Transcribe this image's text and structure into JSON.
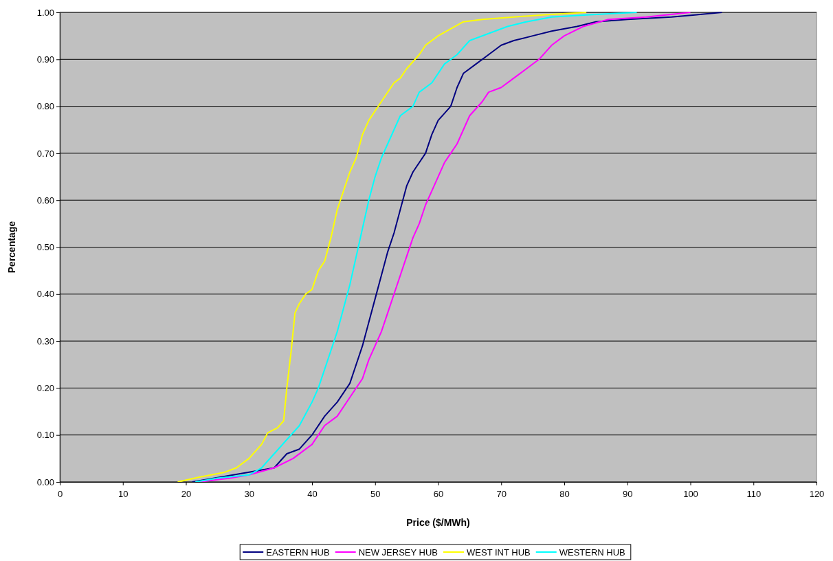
{
  "chart_data": {
    "type": "line",
    "xlabel": "Price ($/MWh)",
    "ylabel": "Percentage",
    "xlim": [
      0,
      120
    ],
    "xticks": [
      0,
      10,
      20,
      30,
      40,
      50,
      60,
      70,
      80,
      90,
      100,
      110,
      120
    ],
    "ylim": [
      0,
      1
    ],
    "yticks": [
      {
        "value": 0,
        "label": "0.00"
      },
      {
        "value": 0.1,
        "label": "0.10"
      },
      {
        "value": 0.2,
        "label": "0.20"
      },
      {
        "value": 0.3,
        "label": "0.30"
      },
      {
        "value": 0.4,
        "label": "0.40"
      },
      {
        "value": 0.5,
        "label": "0.50"
      },
      {
        "value": 0.6,
        "label": "0.60"
      },
      {
        "value": 0.7,
        "label": "0.70"
      },
      {
        "value": 0.8,
        "label": "0.80"
      },
      {
        "value": 0.9,
        "label": "0.90"
      },
      {
        "value": 1,
        "label": "1.00"
      }
    ],
    "grid": "y",
    "legend": "bottom",
    "marker": "none",
    "line_style": "solid",
    "series": [
      {
        "name": "EASTERN HUB",
        "color": "#000080",
        "x": [
          21,
          34,
          36,
          38,
          40,
          42,
          44,
          46,
          47,
          48,
          49,
          50,
          51,
          52,
          53,
          54,
          55,
          56,
          58,
          59,
          60,
          62,
          63,
          64,
          66,
          68,
          70,
          72,
          75,
          78,
          82,
          85,
          90,
          97,
          101,
          105
        ],
        "values": [
          0,
          0.03,
          0.06,
          0.07,
          0.1,
          0.14,
          0.17,
          0.21,
          0.25,
          0.29,
          0.34,
          0.39,
          0.44,
          0.49,
          0.53,
          0.58,
          0.63,
          0.66,
          0.7,
          0.74,
          0.77,
          0.8,
          0.84,
          0.87,
          0.89,
          0.91,
          0.93,
          0.94,
          0.95,
          0.96,
          0.97,
          0.98,
          0.985,
          0.99,
          0.995,
          1
        ]
      },
      {
        "name": "NEW JERSEY HUB",
        "color": "#ff00ff",
        "x": [
          22,
          27,
          30,
          34,
          37,
          40,
          42,
          44,
          46,
          48,
          49,
          50,
          51,
          52,
          53,
          54,
          55,
          56,
          57,
          58,
          59,
          60,
          61,
          62,
          63,
          64,
          65,
          67,
          68,
          70,
          72,
          74,
          76,
          78,
          80,
          83,
          87,
          93,
          100
        ],
        "values": [
          0,
          0.008,
          0.015,
          0.03,
          0.05,
          0.08,
          0.12,
          0.14,
          0.18,
          0.22,
          0.26,
          0.29,
          0.32,
          0.36,
          0.4,
          0.44,
          0.48,
          0.52,
          0.55,
          0.59,
          0.62,
          0.65,
          0.68,
          0.7,
          0.72,
          0.75,
          0.78,
          0.81,
          0.83,
          0.84,
          0.86,
          0.88,
          0.9,
          0.93,
          0.95,
          0.97,
          0.985,
          0.99,
          1
        ]
      },
      {
        "name": "WEST INT HUB",
        "color": "#ffff00",
        "x": [
          18.7,
          22,
          26,
          28,
          30,
          32,
          33,
          34.5,
          35.5,
          36,
          36.7,
          37.3,
          38,
          39,
          40,
          41,
          42,
          43,
          44,
          45,
          46,
          47,
          48,
          49,
          50,
          51,
          53,
          54,
          55,
          57,
          58,
          60,
          62,
          64,
          67,
          72,
          77,
          83.5
        ],
        "values": [
          0,
          0.01,
          0.02,
          0.03,
          0.05,
          0.08,
          0.105,
          0.115,
          0.13,
          0.2,
          0.28,
          0.36,
          0.38,
          0.4,
          0.41,
          0.45,
          0.47,
          0.52,
          0.58,
          0.62,
          0.66,
          0.69,
          0.74,
          0.77,
          0.79,
          0.81,
          0.85,
          0.86,
          0.88,
          0.91,
          0.93,
          0.95,
          0.965,
          0.98,
          0.985,
          0.99,
          0.995,
          1
        ]
      },
      {
        "name": "WESTERN HUB",
        "color": "#00ffff",
        "x": [
          21.5,
          25,
          30,
          32,
          34,
          36,
          38,
          40,
          41,
          42,
          43,
          44,
          45,
          46,
          47,
          48,
          49,
          50,
          51,
          52,
          53,
          54,
          56,
          57,
          59,
          61,
          63,
          65,
          68,
          71,
          74,
          78,
          84,
          91.5
        ],
        "values": [
          0,
          0.008,
          0.015,
          0.03,
          0.06,
          0.09,
          0.12,
          0.17,
          0.2,
          0.24,
          0.28,
          0.32,
          0.37,
          0.42,
          0.48,
          0.54,
          0.6,
          0.65,
          0.69,
          0.72,
          0.75,
          0.78,
          0.8,
          0.83,
          0.85,
          0.89,
          0.91,
          0.94,
          0.955,
          0.97,
          0.98,
          0.99,
          0.995,
          1
        ]
      }
    ]
  }
}
